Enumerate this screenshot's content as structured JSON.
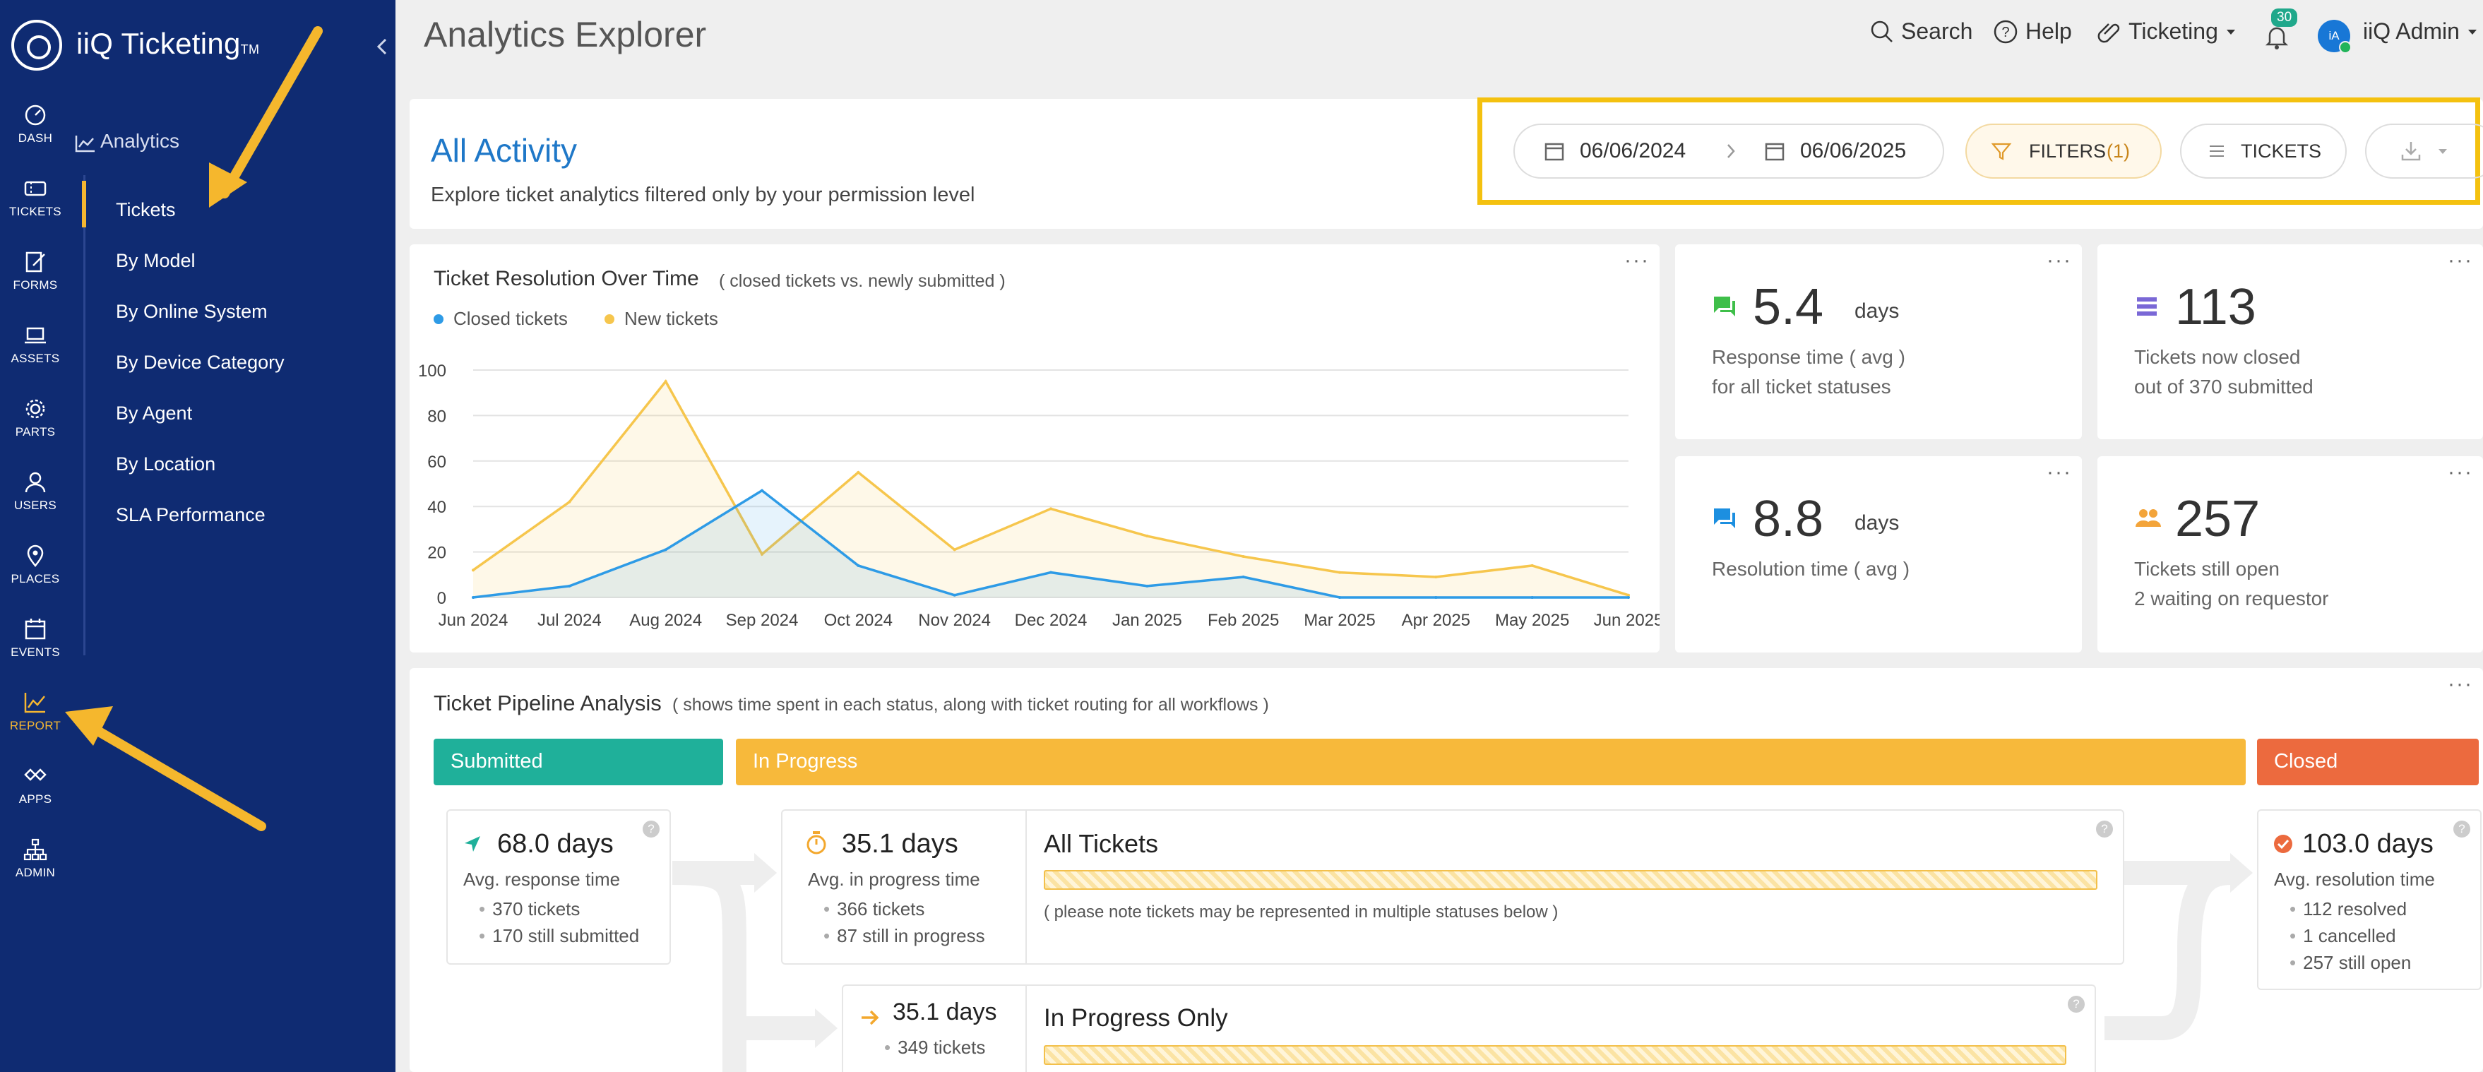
{
  "app": {
    "name": "iiQ Ticketing",
    "tm": "TM"
  },
  "rail": [
    {
      "label": "DASH",
      "icon": "dashboard-icon"
    },
    {
      "label": "TICKETS",
      "icon": "ticket-icon"
    },
    {
      "label": "FORMS",
      "icon": "forms-icon"
    },
    {
      "label": "ASSETS",
      "icon": "laptop-icon"
    },
    {
      "label": "PARTS",
      "icon": "gear-icon"
    },
    {
      "label": "USERS",
      "icon": "user-icon"
    },
    {
      "label": "PLACES",
      "icon": "map-pin-icon"
    },
    {
      "label": "EVENTS",
      "icon": "calendar-icon"
    },
    {
      "label": "REPORT",
      "icon": "report-chart-icon",
      "active": true
    },
    {
      "label": "APPS",
      "icon": "apps-icon"
    },
    {
      "label": "ADMIN",
      "icon": "admin-icon"
    }
  ],
  "subnav": {
    "title": "Analytics",
    "items": [
      "Tickets",
      "By Model",
      "By Online System",
      "By Device Category",
      "By Agent",
      "By Location",
      "SLA Performance"
    ]
  },
  "header": {
    "title": "Analytics Explorer",
    "search": "Search",
    "help": "Help",
    "module": "Ticketing",
    "notifications": "30",
    "avatar": "iA",
    "user": "iiQ Admin"
  },
  "activity": {
    "title": "All Activity",
    "subtitle": "Explore ticket analytics filtered only by your permission level",
    "date_from": "06/06/2024",
    "date_to": "06/06/2025",
    "filters_label": "FILTERS",
    "filters_count": "(1)",
    "tickets_label": "TICKETS"
  },
  "chart_card": {
    "title": "Ticket Resolution Over Time",
    "note": "( closed tickets vs. newly submitted )"
  },
  "chart_data": {
    "type": "area",
    "title": "Ticket Resolution Over Time",
    "categories": [
      "Jun 2024",
      "Jul 2024",
      "Aug 2024",
      "Sep 2024",
      "Oct 2024",
      "Nov 2024",
      "Dec 2024",
      "Jan 2025",
      "Feb 2025",
      "Mar 2025",
      "Apr 2025",
      "May 2025",
      "Jun 2025"
    ],
    "ylim": [
      0,
      100
    ],
    "yticks": [
      "0",
      "20",
      "40",
      "60",
      "80",
      "100"
    ],
    "grid": true,
    "legend": "top-left",
    "series": [
      {
        "name": "Closed tickets",
        "color": "#2e9be6",
        "values": [
          0,
          5,
          21,
          47,
          14,
          1,
          11,
          5,
          9,
          0,
          0,
          0,
          0
        ]
      },
      {
        "name": "New tickets",
        "color": "#f6c64d",
        "values": [
          12,
          42,
          95,
          19,
          55,
          21,
          39,
          27,
          18,
          11,
          9,
          14,
          1
        ]
      }
    ]
  },
  "stats": [
    {
      "value": "5.4",
      "unit": "days",
      "line1": "Response time ( avg )",
      "line2": "for all ticket statuses",
      "icon": "chat-icon",
      "color": "#3fbf4a"
    },
    {
      "value": "113",
      "unit": "",
      "line1": "Tickets now closed",
      "line2": "out of 370 submitted",
      "icon": "stack-icon",
      "color": "#7a68d6"
    },
    {
      "value": "8.8",
      "unit": "days",
      "line1": "Resolution time ( avg )",
      "line2": "",
      "icon": "chat-reply-icon",
      "color": "#1c8fe0"
    },
    {
      "value": "257",
      "unit": "",
      "line1": "Tickets still open",
      "line2": "2 waiting on requestor",
      "icon": "people-icon",
      "color": "#f3a43a"
    }
  ],
  "pipeline": {
    "title": "Ticket Pipeline Analysis",
    "note": "( shows time spent in each status, along with ticket routing for all workflows )",
    "stages": [
      {
        "label": "Submitted",
        "color": "#1fb09a"
      },
      {
        "label": "In Progress",
        "color": "#f7b93b"
      },
      {
        "label": "Closed",
        "color": "#ec6a3e"
      }
    ],
    "submitted": {
      "days": "68.0 days",
      "label": "Avg. response time",
      "items": [
        "370 tickets",
        "170 still submitted"
      ]
    },
    "in_progress": {
      "days": "35.1 days",
      "label": "Avg. in progress time",
      "items": [
        "366 tickets",
        "87 still in progress"
      ],
      "title": "All Tickets",
      "note": "( please note tickets may be represented in multiple statuses below )"
    },
    "in_progress_only": {
      "days": "35.1 days",
      "items": [
        "349 tickets"
      ],
      "title": "In Progress Only"
    },
    "closed": {
      "days": "103.0 days",
      "label": "Avg. resolution time",
      "items": [
        "112 resolved",
        "1 cancelled",
        "257 still open"
      ]
    }
  }
}
